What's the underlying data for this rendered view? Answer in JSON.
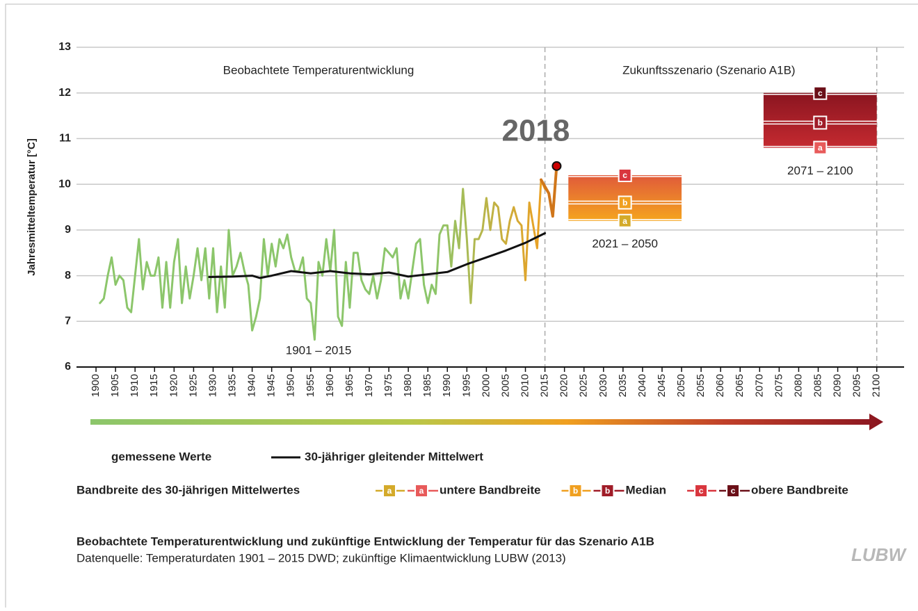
{
  "chart_data": {
    "type": "line",
    "y_label": "Jahresmitteltemperatur [°C]",
    "section_labels": [
      "Beobachtete Temperaturentwicklung",
      "Zukunftsszenario (Szenario A1B)"
    ],
    "period_label": "1901 – 2015",
    "xlim": [
      1895,
      2107
    ],
    "ylim": [
      6,
      13
    ],
    "yticks": [
      6,
      7,
      8,
      9,
      10,
      11,
      12,
      13
    ],
    "xticks": [
      1900,
      1905,
      1910,
      1915,
      1920,
      1925,
      1930,
      1935,
      1940,
      1945,
      1950,
      1955,
      1960,
      1965,
      1970,
      1975,
      1980,
      1985,
      1990,
      1995,
      2000,
      2005,
      2010,
      2015,
      2020,
      2025,
      2030,
      2035,
      2040,
      2045,
      2050,
      2055,
      2060,
      2065,
      2070,
      2075,
      2080,
      2085,
      2090,
      2095,
      2100
    ],
    "dashed_x": [
      2015,
      2100
    ],
    "grid": true,
    "series": [
      {
        "name": "gemessene Werte",
        "colors": [
          "#8cc66b",
          "#eea022"
        ],
        "x": [
          1901,
          1902,
          1903,
          1904,
          1905,
          1906,
          1907,
          1908,
          1909,
          1910,
          1911,
          1912,
          1913,
          1914,
          1915,
          1916,
          1917,
          1918,
          1919,
          1920,
          1921,
          1922,
          1923,
          1924,
          1925,
          1926,
          1927,
          1928,
          1929,
          1930,
          1931,
          1932,
          1933,
          1934,
          1935,
          1936,
          1937,
          1938,
          1939,
          1940,
          1941,
          1942,
          1943,
          1944,
          1945,
          1946,
          1947,
          1948,
          1949,
          1950,
          1951,
          1952,
          1953,
          1954,
          1955,
          1956,
          1957,
          1958,
          1959,
          1960,
          1961,
          1962,
          1963,
          1964,
          1965,
          1966,
          1967,
          1968,
          1969,
          1970,
          1971,
          1972,
          1973,
          1974,
          1975,
          1976,
          1977,
          1978,
          1979,
          1980,
          1981,
          1982,
          1983,
          1984,
          1985,
          1986,
          1987,
          1988,
          1989,
          1990,
          1991,
          1992,
          1993,
          1994,
          1995,
          1996,
          1997,
          1998,
          1999,
          2000,
          2001,
          2002,
          2003,
          2004,
          2005,
          2006,
          2007,
          2008,
          2009,
          2010,
          2011,
          2012,
          2013,
          2014,
          2015
        ],
        "values": [
          7.4,
          7.5,
          8.0,
          8.4,
          7.8,
          8.0,
          7.9,
          7.3,
          7.2,
          8.0,
          8.8,
          7.7,
          8.3,
          8.0,
          8.0,
          8.4,
          7.3,
          8.3,
          7.3,
          8.3,
          8.8,
          7.4,
          8.2,
          7.5,
          8.0,
          8.6,
          7.9,
          8.6,
          7.5,
          8.6,
          7.2,
          8.2,
          7.3,
          9.0,
          8.0,
          8.2,
          8.5,
          8.1,
          7.8,
          6.8,
          7.1,
          7.5,
          8.8,
          8.0,
          8.7,
          8.2,
          8.8,
          8.6,
          8.9,
          8.4,
          8.1,
          8.1,
          8.4,
          7.5,
          7.4,
          6.6,
          8.3,
          8.0,
          8.8,
          8.1,
          9.0,
          7.1,
          6.9,
          8.3,
          7.3,
          8.5,
          8.5,
          7.9,
          7.7,
          7.6,
          8.0,
          7.5,
          7.9,
          8.6,
          8.5,
          8.4,
          8.6,
          7.5,
          7.9,
          7.5,
          8.1,
          8.7,
          8.8,
          7.8,
          7.4,
          7.8,
          7.6,
          8.9,
          9.1,
          9.1,
          8.2,
          9.2,
          8.6,
          9.9,
          8.8,
          7.4,
          8.8,
          8.8,
          9.0,
          9.7,
          9.0,
          9.6,
          9.5,
          8.8,
          8.7,
          9.2,
          9.5,
          9.2,
          9.1,
          7.9,
          9.6,
          9.1,
          8.6,
          10.1,
          9.9
        ]
      },
      {
        "name": "30-jähriger gleitender Mittelwert",
        "color": "#111111",
        "x": [
          1929,
          1935,
          1940,
          1942,
          1945,
          1950,
          1955,
          1960,
          1965,
          1970,
          1975,
          1980,
          1985,
          1990,
          1995,
          2000,
          2005,
          2010,
          2015
        ],
        "values": [
          7.97,
          7.98,
          8.0,
          7.95,
          8.0,
          8.1,
          8.05,
          8.1,
          8.05,
          8.03,
          8.07,
          7.98,
          8.03,
          8.08,
          8.25,
          8.4,
          8.55,
          8.72,
          8.93
        ]
      },
      {
        "color": "#d0761a",
        "x": [
          2014,
          2016,
          2017,
          2018
        ],
        "values": [
          10.1,
          9.8,
          9.3,
          10.4
        ]
      }
    ],
    "annotation": {
      "text": "2018",
      "x": 2018,
      "y": 10.4,
      "color": "#cc0000"
    },
    "scenarios": [
      {
        "label": "2021 – 2050",
        "start": 2021,
        "end": 2050,
        "a": 9.2,
        "b": 9.6,
        "c": 10.2,
        "colors": [
          "#e05a3a",
          "#f5a51e"
        ]
      },
      {
        "label": "2071 – 2100",
        "start": 2071,
        "end": 2100,
        "a": 10.8,
        "b": 11.35,
        "c": 12.0,
        "colors": [
          "#8a1520",
          "#c52a30"
        ]
      }
    ],
    "band_title": "Bandbreite des 30-jährigen Mittelwertes",
    "legend_bands": [
      {
        "letters": [
          "a",
          "a"
        ],
        "colors": [
          "#d4aa2a",
          "#e85a5a"
        ],
        "label": "untere Bandbreite"
      },
      {
        "letters": [
          "b",
          "b"
        ],
        "colors": [
          "#f0a020",
          "#a01c28"
        ],
        "label": "Median"
      },
      {
        "letters": [
          "c",
          "c"
        ],
        "colors": [
          "#d9363e",
          "#6b0f18"
        ],
        "label": "obere Bandbreite"
      }
    ],
    "caption": "Beobachtete Temperaturentwicklung und zukünftige Entwicklung der Temperatur für das Szenario A1B",
    "source": "Datenquelle: Temperaturdaten 1901 – 2015 DWD; zukünftige Klimaentwicklung LUBW (2013)",
    "logo": "LUBW"
  }
}
